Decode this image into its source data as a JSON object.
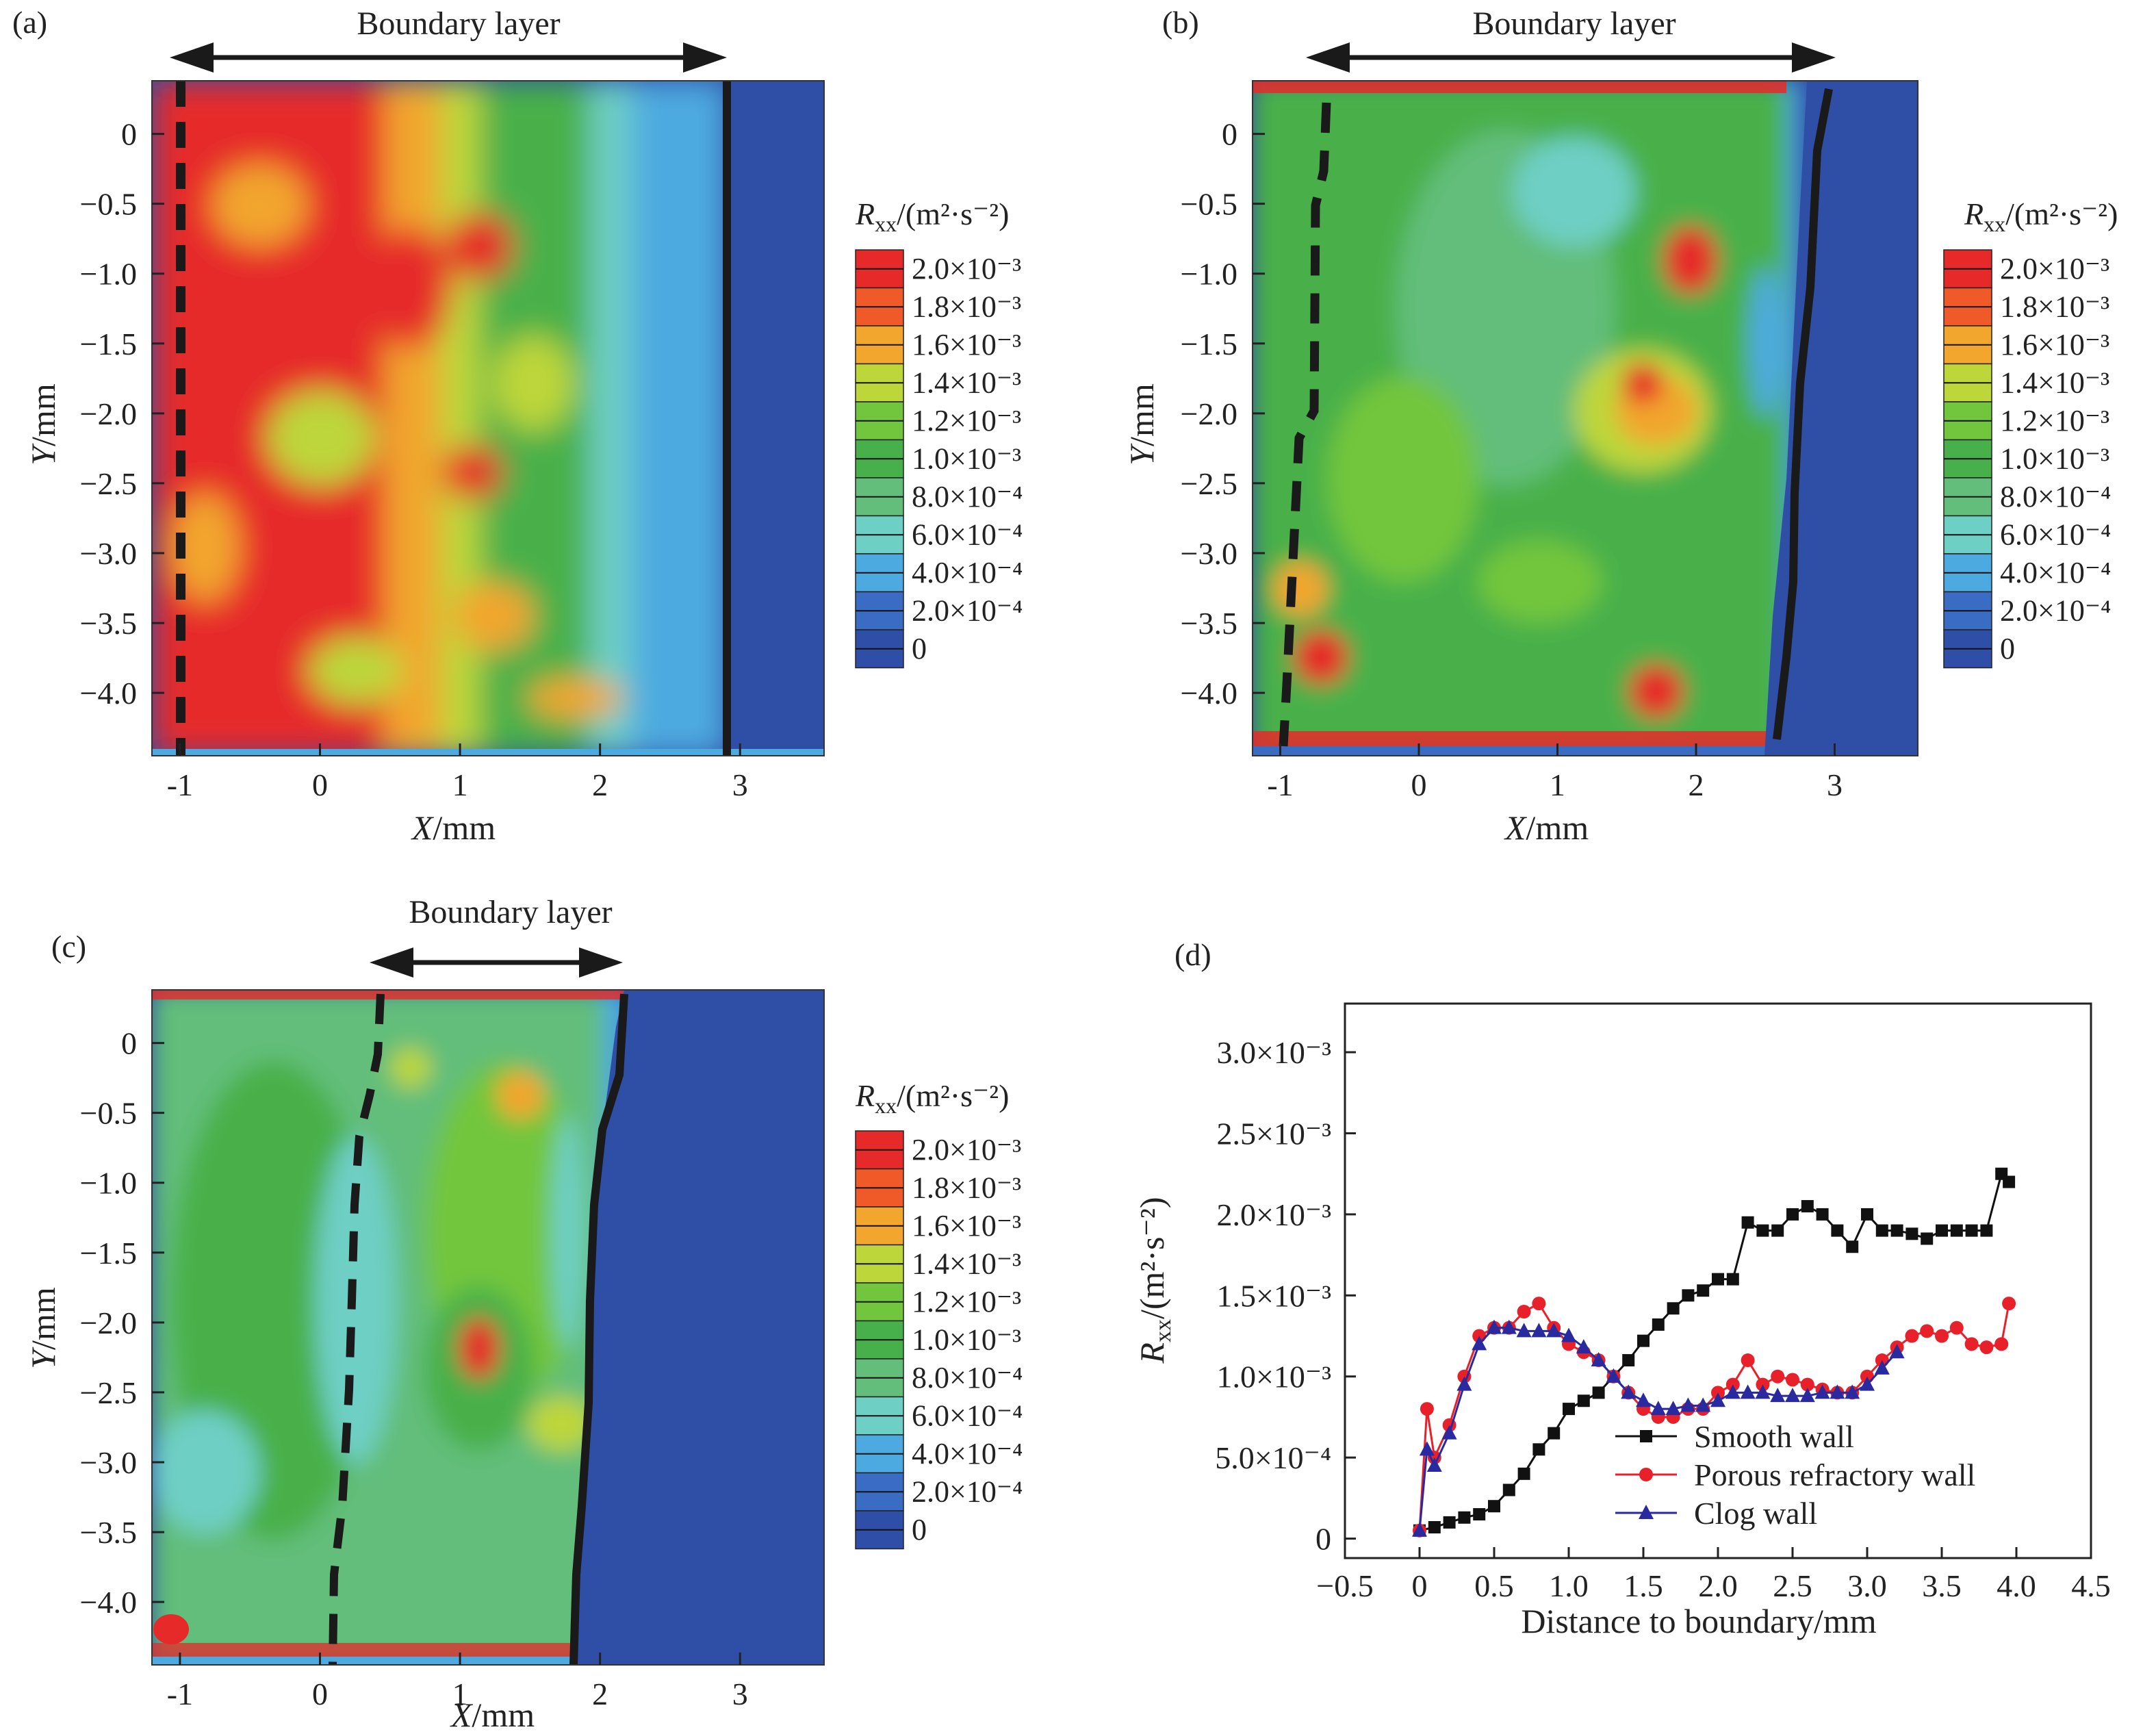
{
  "figure_colors": {
    "contour_levels": [
      "#2F4EA8",
      "#3A6CC4",
      "#4DAAE0",
      "#6ECFC4",
      "#62BE7A",
      "#48B04A",
      "#72C63E",
      "#BDD63A",
      "#F2A62E",
      "#F05A28",
      "#E62A2A"
    ],
    "outside_region": "#2F4FA6",
    "line_black": "#1a1a1a"
  },
  "colorbar": {
    "title_symbol": "R",
    "title_sub": "xx",
    "title_unit": "/(m²·s⁻²)",
    "labels": [
      "2.0×10⁻³",
      "1.8×10⁻³",
      "1.6×10⁻³",
      "1.4×10⁻³",
      "1.2×10⁻³",
      "1.0×10⁻³",
      "8.0×10⁻⁴",
      "6.0×10⁻⁴",
      "4.0×10⁻⁴",
      "2.0×10⁻⁴",
      "0"
    ]
  },
  "chart_data": [
    {
      "id": "a",
      "type": "heatmap",
      "panel_label": "(a)",
      "annotation": "Boundary layer",
      "xlabel": "X/mm",
      "ylabel": "Y/mm",
      "xlim": [
        -1.2,
        3.6
      ],
      "ylim": [
        -4.45,
        0.38
      ],
      "xticks": [
        "-1",
        "0",
        "1",
        "2",
        "3"
      ],
      "xtick_values": [
        -1,
        0,
        1,
        2,
        3
      ],
      "yticks": [
        "0",
        "−0.5",
        "−1.0",
        "−1.5",
        "−2.0",
        "−2.5",
        "−3.0",
        "−3.5",
        "−4.0"
      ],
      "ytick_values": [
        0,
        -0.5,
        -1.0,
        -1.5,
        -2.0,
        -2.5,
        -3.0,
        -3.5,
        -4.0
      ],
      "boundary_layer_span": [
        -1.0,
        2.9
      ],
      "dominant_colors": [
        "#E62A2A",
        "#F2A62E",
        "#BDD63A",
        "#48B04A"
      ],
      "fluid_edge_x": 2.9,
      "inner_edge_x": -1.0
    },
    {
      "id": "b",
      "type": "heatmap",
      "panel_label": "(b)",
      "annotation": "Boundary layer",
      "xlabel": "X/mm",
      "ylabel": "Y/mm",
      "xlim": [
        -1.2,
        3.6
      ],
      "ylim": [
        -4.45,
        0.38
      ],
      "xticks": [
        "-1",
        "0",
        "1",
        "2",
        "3"
      ],
      "xtick_values": [
        -1,
        0,
        1,
        2,
        3
      ],
      "yticks": [
        "0",
        "−0.5",
        "−1.0",
        "−1.5",
        "−2.0",
        "−2.5",
        "−3.0",
        "−3.5",
        "−4.0"
      ],
      "ytick_values": [
        0,
        -0.5,
        -1.0,
        -1.5,
        -2.0,
        -2.5,
        -3.0,
        -3.5,
        -4.0
      ],
      "boundary_layer_span": [
        -0.7,
        2.9
      ],
      "dominant_colors": [
        "#48B04A",
        "#62BE7A",
        "#72C63E",
        "#6ECFC4"
      ],
      "fluid_edge_x": 2.6,
      "inner_edge_x": -0.8
    },
    {
      "id": "c",
      "type": "heatmap",
      "panel_label": "(c)",
      "annotation": "Boundary layer",
      "xlabel": "X/mm",
      "ylabel": "Y/mm",
      "xlim": [
        -1.2,
        3.6
      ],
      "ylim": [
        -4.45,
        0.38
      ],
      "xticks": [
        "-1",
        "0",
        "1",
        "2",
        "3"
      ],
      "xtick_values": [
        -1,
        0,
        1,
        2,
        3
      ],
      "yticks": [
        "0",
        "−0.5",
        "−1.0",
        "−1.5",
        "−2.0",
        "−2.5",
        "−3.0",
        "−3.5",
        "−4.0"
      ],
      "ytick_values": [
        0,
        -0.5,
        -1.0,
        -1.5,
        -2.0,
        -2.5,
        -3.0,
        -3.5,
        -4.0
      ],
      "boundary_layer_span": [
        0.4,
        2.2
      ],
      "dominant_colors": [
        "#62BE7A",
        "#48B04A",
        "#6ECFC4",
        "#72C63E"
      ],
      "fluid_edge_x": 2.0,
      "inner_edge_x": 0.25
    },
    {
      "id": "d",
      "type": "line",
      "panel_label": "(d)",
      "xlabel": "Distance to boundary/mm",
      "ylabel_symbol": "R",
      "ylabel_sub": "xx",
      "ylabel_unit": "/(m²·s⁻²)",
      "xlim": [
        -0.5,
        4.5
      ],
      "ylim": [
        -0.00012,
        0.0033
      ],
      "xticks": [
        "−0.5",
        "0",
        "0.5",
        "1.0",
        "1.5",
        "2.0",
        "2.5",
        "3.0",
        "3.5",
        "4.0",
        "4.5"
      ],
      "xtick_values": [
        -0.5,
        0,
        0.5,
        1.0,
        1.5,
        2.0,
        2.5,
        3.0,
        3.5,
        4.0,
        4.5
      ],
      "yticks": [
        "0",
        "5.0×10⁻⁴",
        "1.0×10⁻³",
        "1.5×10⁻³",
        "2.0×10⁻³",
        "2.5×10⁻³",
        "3.0×10⁻³"
      ],
      "ytick_values": [
        0,
        0.0005,
        0.001,
        0.0015,
        0.002,
        0.0025,
        0.003
      ],
      "legend_position": "bottom-right",
      "series": [
        {
          "name": "Smooth wall",
          "color": "#111111",
          "marker": "square",
          "x": [
            0,
            0.1,
            0.2,
            0.3,
            0.4,
            0.5,
            0.6,
            0.7,
            0.8,
            0.9,
            1.0,
            1.1,
            1.2,
            1.3,
            1.4,
            1.5,
            1.6,
            1.7,
            1.8,
            1.9,
            2.0,
            2.1,
            2.2,
            2.3,
            2.4,
            2.5,
            2.6,
            2.7,
            2.8,
            2.9,
            3.0,
            3.1,
            3.2,
            3.3,
            3.4,
            3.5,
            3.6,
            3.7,
            3.8,
            3.9,
            3.95
          ],
          "y": [
            5e-05,
            7e-05,
            0.0001,
            0.00013,
            0.00015,
            0.0002,
            0.0003,
            0.0004,
            0.00055,
            0.00065,
            0.0008,
            0.00085,
            0.0009,
            0.001,
            0.0011,
            0.00122,
            0.00132,
            0.00142,
            0.0015,
            0.00153,
            0.0016,
            0.0016,
            0.00195,
            0.0019,
            0.0019,
            0.002,
            0.00205,
            0.002,
            0.0019,
            0.0018,
            0.002,
            0.0019,
            0.0019,
            0.00188,
            0.00185,
            0.0019,
            0.0019,
            0.0019,
            0.0019,
            0.00225,
            0.0022
          ]
        },
        {
          "name": "Porous refractory wall",
          "color": "#E8202A",
          "marker": "circle",
          "x": [
            0,
            0.05,
            0.1,
            0.2,
            0.3,
            0.4,
            0.5,
            0.6,
            0.7,
            0.8,
            0.9,
            1.0,
            1.1,
            1.2,
            1.3,
            1.4,
            1.5,
            1.6,
            1.7,
            1.8,
            1.9,
            2.0,
            2.1,
            2.2,
            2.3,
            2.4,
            2.5,
            2.6,
            2.7,
            2.8,
            2.9,
            3.0,
            3.1,
            3.2,
            3.3,
            3.4,
            3.5,
            3.6,
            3.7,
            3.8,
            3.9,
            3.95
          ],
          "y": [
            5e-05,
            0.0008,
            0.0005,
            0.0007,
            0.001,
            0.00125,
            0.0013,
            0.0013,
            0.0014,
            0.00145,
            0.0013,
            0.0012,
            0.00115,
            0.0011,
            0.001,
            0.0009,
            0.0008,
            0.00075,
            0.00075,
            0.0008,
            0.0008,
            0.0009,
            0.00095,
            0.0011,
            0.00095,
            0.001,
            0.00098,
            0.00095,
            0.00092,
            0.0009,
            0.0009,
            0.001,
            0.0011,
            0.00118,
            0.00125,
            0.00128,
            0.00125,
            0.0013,
            0.0012,
            0.00118,
            0.0012,
            0.00145
          ]
        },
        {
          "name": "Clog wall",
          "color": "#2A2AA0",
          "marker": "triangle",
          "x": [
            0,
            0.05,
            0.1,
            0.2,
            0.3,
            0.4,
            0.5,
            0.6,
            0.7,
            0.8,
            0.9,
            1.0,
            1.1,
            1.2,
            1.3,
            1.4,
            1.5,
            1.6,
            1.7,
            1.8,
            1.9,
            2.0,
            2.1,
            2.2,
            2.3,
            2.4,
            2.5,
            2.6,
            2.7,
            2.8,
            2.9,
            3.0,
            3.1,
            3.2
          ],
          "y": [
            5e-05,
            0.00055,
            0.00045,
            0.00065,
            0.00095,
            0.0012,
            0.0013,
            0.0013,
            0.00128,
            0.00128,
            0.00128,
            0.00125,
            0.00118,
            0.0011,
            0.001,
            0.0009,
            0.00085,
            0.0008,
            0.0008,
            0.00082,
            0.00082,
            0.00085,
            0.0009,
            0.0009,
            0.0009,
            0.00088,
            0.00088,
            0.00088,
            0.0009,
            0.0009,
            0.0009,
            0.00095,
            0.00105,
            0.00115
          ]
        }
      ]
    }
  ]
}
